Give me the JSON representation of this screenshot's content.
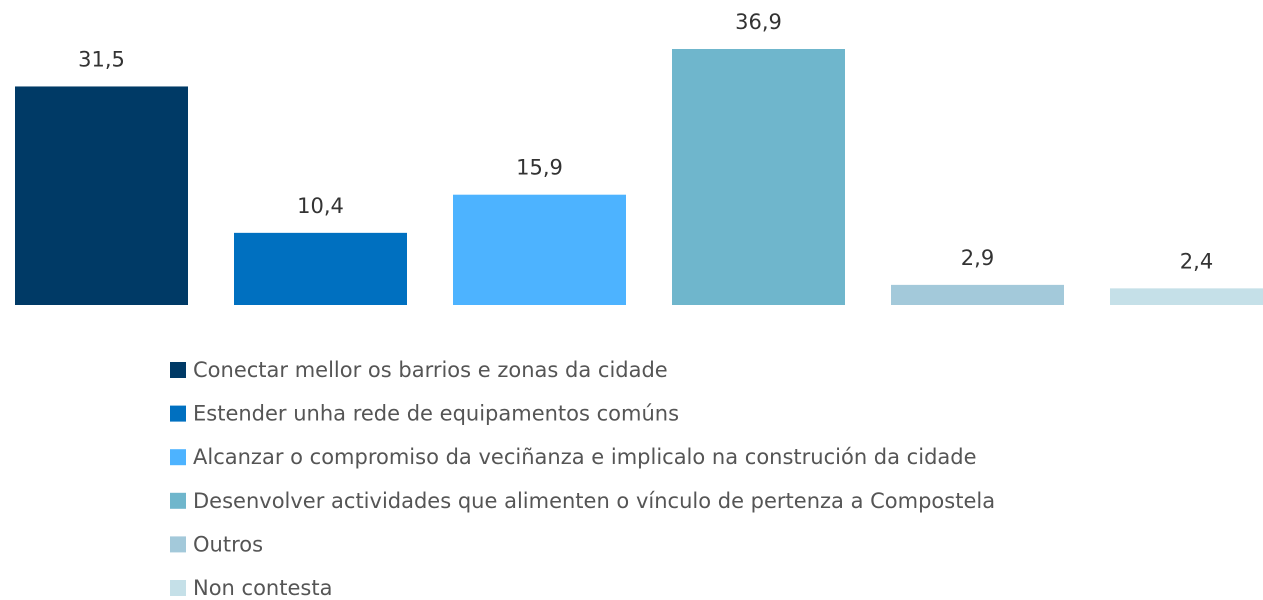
{
  "chart_data": {
    "type": "bar",
    "series": [
      {
        "name": "Conectar mellor os barrios e zonas da cidade",
        "color": "#003a66",
        "values": [
          31.5
        ],
        "value_labels": [
          "31,5"
        ]
      },
      {
        "name": "Estender unha rede de equipamentos comúns",
        "color": "#0070c0",
        "values": [
          10.4
        ],
        "value_labels": [
          "10,4"
        ]
      },
      {
        "name": "Alcanzar o compromiso da veciñanza e implicalo na construción da cidade",
        "color": "#4db3ff",
        "values": [
          15.9
        ],
        "value_labels": [
          "15,9"
        ]
      },
      {
        "name": "Desenvolver actividades que alimenten o vínculo de pertenza a Compostela",
        "color": "#6fb6cc",
        "values": [
          36.9
        ],
        "value_labels": [
          "36,9"
        ]
      },
      {
        "name": "Outros",
        "color": "#a3c9da",
        "values": [
          2.9
        ],
        "value_labels": [
          "2,9"
        ]
      },
      {
        "name": "Non contesta",
        "color": "#c5e0e8",
        "values": [
          2.4
        ],
        "value_labels": [
          "2,4"
        ]
      }
    ]
  }
}
